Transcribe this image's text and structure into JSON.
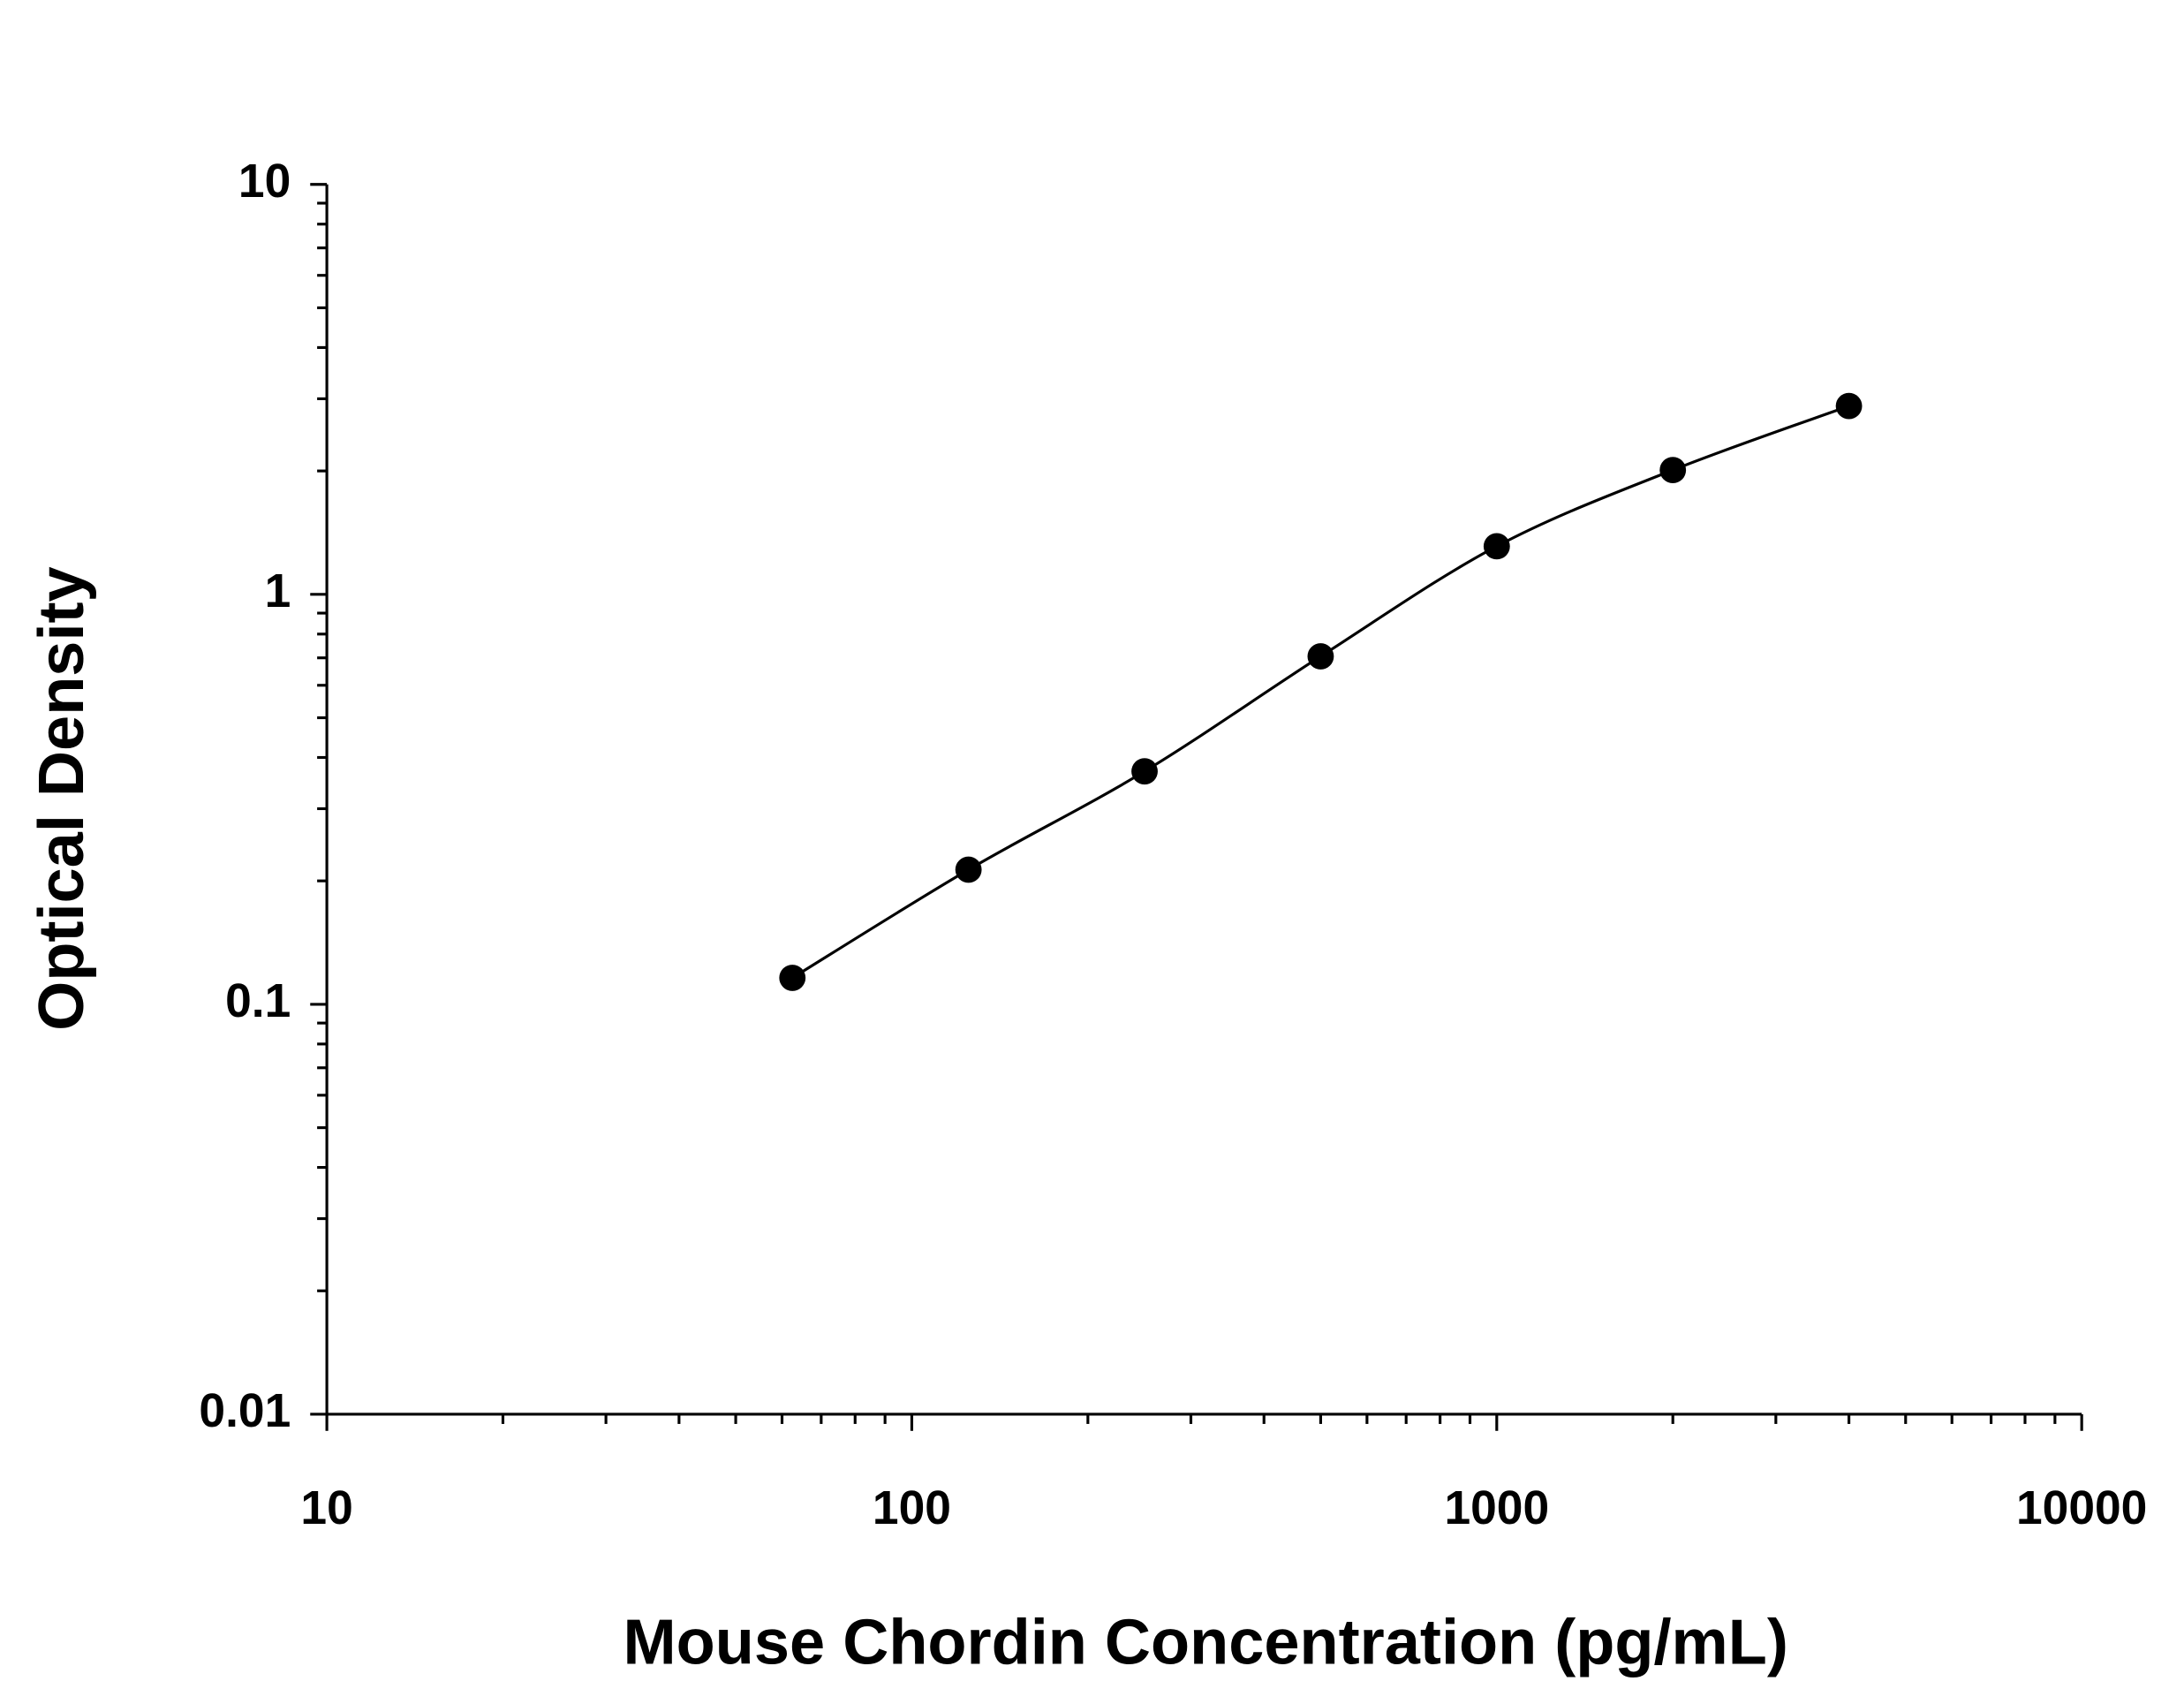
{
  "chart_data": {
    "type": "scatter",
    "x_label": "Mouse Chordin Concentration (pg/mL)",
    "y_label": "Optical Density",
    "x": [
      62.5,
      125,
      250,
      500,
      1000,
      2000,
      4000
    ],
    "series": [
      {
        "color": "#000000",
        "values": [
          0.116,
          0.213,
          0.37,
          0.706,
          1.31,
          2.01,
          2.88
        ]
      }
    ],
    "xlim": [
      10,
      10000
    ],
    "ylim": [
      0.01,
      10
    ],
    "xticks": [
      10,
      100,
      1000,
      10000
    ],
    "yticks": [
      0.01,
      0.1,
      1,
      10
    ],
    "xscale": "log",
    "yscale": "log",
    "minor_ticks": true,
    "fit_curve": true
  }
}
